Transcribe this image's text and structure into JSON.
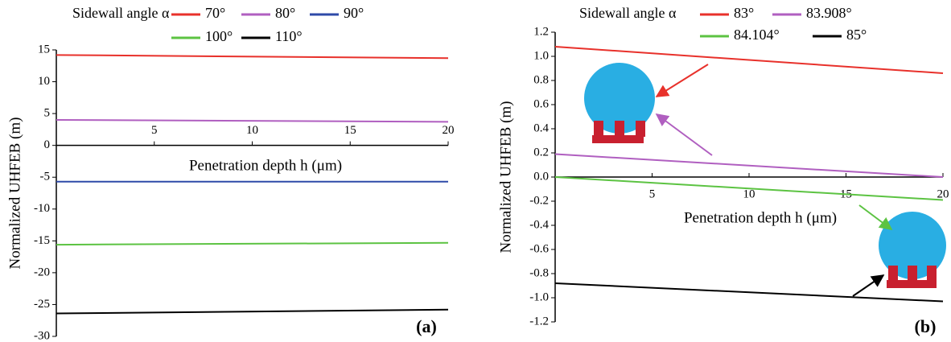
{
  "chart_data": [
    {
      "type": "line",
      "panel_label": "(a)",
      "legend_title": "Sidewall angle α",
      "legend": "top",
      "xlabel": "Penetration depth h (μm)",
      "ylabel": "Normalized UHFEB (m)",
      "x": [
        0,
        20
      ],
      "xlim": [
        0,
        20
      ],
      "xticks": [
        5,
        10,
        15,
        20
      ],
      "ylim": [
        -30,
        15
      ],
      "yticks": [
        -30,
        -25,
        -20,
        -15,
        -10,
        -5,
        0,
        5,
        10,
        15
      ],
      "series": [
        {
          "name": "70°",
          "color": "#e8312b",
          "values": [
            14.2,
            13.7
          ]
        },
        {
          "name": "80°",
          "color": "#b05fc0",
          "values": [
            4.0,
            3.7
          ]
        },
        {
          "name": "90°",
          "color": "#2e4aa8",
          "values": [
            -5.7,
            -5.7
          ]
        },
        {
          "name": "100°",
          "color": "#5cc342",
          "values": [
            -15.6,
            -15.3
          ]
        },
        {
          "name": "110°",
          "color": "#000000",
          "values": [
            -26.4,
            -25.8
          ]
        }
      ]
    },
    {
      "type": "line",
      "panel_label": "(b)",
      "legend_title": "Sidewall angle α",
      "legend": "top",
      "xlabel": "Penetration depth h (μm)",
      "ylabel": "Normalized UHFEB (m)",
      "x": [
        0,
        20
      ],
      "xlim": [
        0,
        20
      ],
      "xticks": [
        5,
        10,
        15,
        20
      ],
      "ylim": [
        -1.2,
        1.2
      ],
      "yticks": [
        {
          "value": -1.2,
          "label": "-1.2"
        },
        {
          "value": -1,
          "label": "-1.0"
        },
        {
          "value": -0.8,
          "label": "-0.8"
        },
        {
          "value": -0.6,
          "label": "-0.6"
        },
        {
          "value": -0.4,
          "label": "-0.4"
        },
        {
          "value": -0.2,
          "label": "-0.2"
        },
        {
          "value": 0,
          "label": "0.0"
        },
        {
          "value": 0.2,
          "label": "0.2"
        },
        {
          "value": 0.4,
          "label": "0.4"
        },
        {
          "value": 0.6,
          "label": "0.6"
        },
        {
          "value": 0.8,
          "label": "0.8"
        },
        {
          "value": 1,
          "label": "1.0"
        },
        {
          "value": 1.2,
          "label": "1.2"
        }
      ],
      "series": [
        {
          "name": "83°",
          "color": "#e8312b",
          "values": [
            1.08,
            0.86
          ]
        },
        {
          "name": "83.908°",
          "color": "#b05fc0",
          "values": [
            0.19,
            0.0
          ]
        },
        {
          "name": "84.104°",
          "color": "#5cc342",
          "values": [
            0.0,
            -0.19
          ]
        },
        {
          "name": "85°",
          "color": "#000000",
          "values": [
            -0.88,
            -1.03
          ]
        }
      ]
    }
  ]
}
